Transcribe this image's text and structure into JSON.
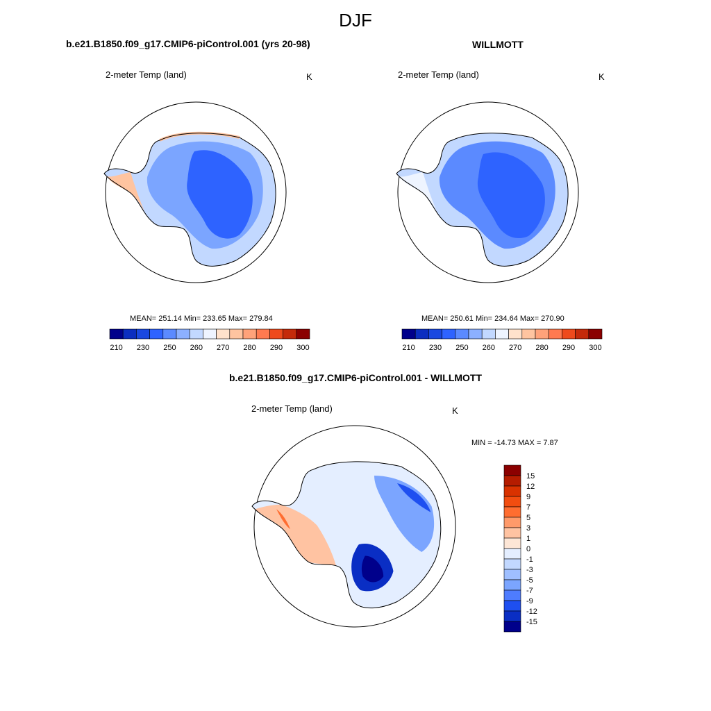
{
  "page": {
    "title": "DJF",
    "panel_left_title": "b.e21.B1850.f09_g17.CMIP6-piControl.001 (yrs 20-98)",
    "panel_right_title": "WILLMOTT",
    "panel_diff_title": "b.e21.B1850.f09_g17.CMIP6-piControl.001 - WILLMOTT",
    "colors": {
      "coast": "#000000",
      "circle": "#000000"
    }
  },
  "chart_data": [
    {
      "type": "heatmap",
      "name": "model",
      "variable": "2-meter Temp (land)",
      "units": "K",
      "stats": "MEAN= 251.14  Min= 233.65  Max= 279.84",
      "mean": 251.14,
      "min": 233.65,
      "max": 279.84,
      "colorbar": {
        "tick_labels": [
          "210",
          "230",
          "250",
          "260",
          "270",
          "280",
          "290",
          "300"
        ],
        "colors": [
          "#00008b",
          "#0b2ec0",
          "#1a48e0",
          "#2e63ff",
          "#5b8aff",
          "#8cb0ff",
          "#c2d8ff",
          "#eef4ff",
          "#ffe2cc",
          "#ffc4a0",
          "#ffa27a",
          "#ff7a50",
          "#ee4a1c",
          "#c42a0a",
          "#8b0000"
        ]
      }
    },
    {
      "type": "heatmap",
      "name": "obs",
      "variable": "2-meter Temp (land)",
      "units": "K",
      "stats": "MEAN= 250.61  Min= 234.64  Max= 270.90",
      "mean": 250.61,
      "min": 234.64,
      "max": 270.9,
      "colorbar": {
        "tick_labels": [
          "210",
          "230",
          "250",
          "260",
          "270",
          "280",
          "290",
          "300"
        ],
        "colors": [
          "#00008b",
          "#0b2ec0",
          "#1a48e0",
          "#2e63ff",
          "#5b8aff",
          "#8cb0ff",
          "#c2d8ff",
          "#eef4ff",
          "#ffe2cc",
          "#ffc4a0",
          "#ffa27a",
          "#ff7a50",
          "#ee4a1c",
          "#c42a0a",
          "#8b0000"
        ]
      }
    },
    {
      "type": "heatmap",
      "name": "difference",
      "variable": "2-meter Temp (land)",
      "units": "K",
      "stats": "MIN = -14.73 MAX =   7.87",
      "min": -14.73,
      "max": 7.87,
      "colorbar": {
        "orientation": "vertical",
        "tick_labels": [
          "15",
          "12",
          "9",
          "7",
          "5",
          "3",
          "1",
          "0",
          "-1",
          "-3",
          "-5",
          "-7",
          "-9",
          "-12",
          "-15"
        ],
        "colors": [
          "#8b0000",
          "#b51c00",
          "#d93200",
          "#f24d10",
          "#ff6d30",
          "#ff9a6a",
          "#ffc3a2",
          "#fde6d6",
          "#e4eeff",
          "#c2d8ff",
          "#9fbfff",
          "#7ba5ff",
          "#4e7cff",
          "#1e4ff0",
          "#0a2ec4",
          "#00008b"
        ]
      }
    }
  ]
}
